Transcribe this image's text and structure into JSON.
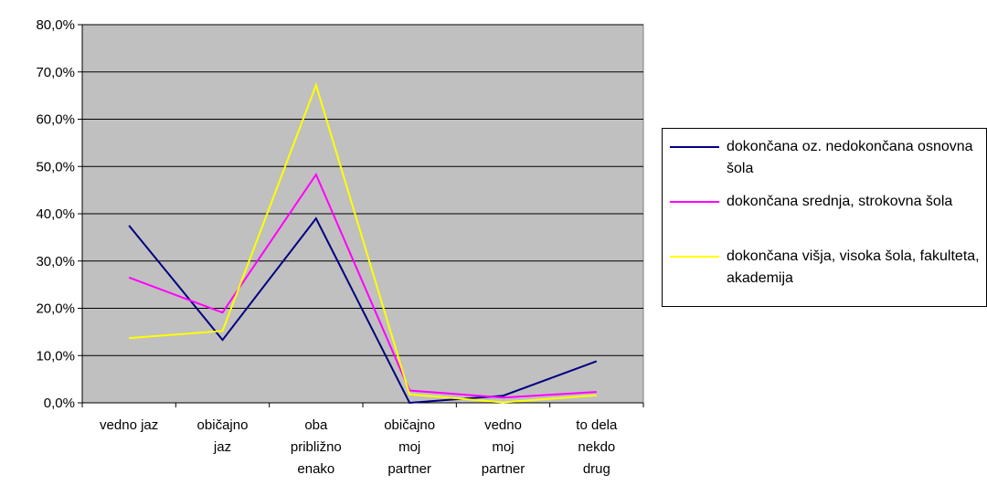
{
  "chart_data": {
    "type": "line",
    "categories": [
      [
        "vedno jaz"
      ],
      [
        "običajno",
        "jaz"
      ],
      [
        "oba",
        "približno",
        "enako"
      ],
      [
        "običajno",
        "moj",
        "partner"
      ],
      [
        "vedno",
        "moj",
        "partner"
      ],
      [
        "to dela",
        "nekdo",
        "drug"
      ]
    ],
    "y_ticks": [
      "0,0%",
      "10,0%",
      "20,0%",
      "30,0%",
      "40,0%",
      "50,0%",
      "60,0%",
      "70,0%",
      "80,0%"
    ],
    "ylim": [
      0,
      80
    ],
    "plot_background": "#c0c0c0",
    "grid": true,
    "legend_position": "right",
    "series": [
      {
        "name": "dokončana oz. nedokončana osnovna šola",
        "color": "#000080",
        "values": [
          37.5,
          13.3,
          39.0,
          0.0,
          1.5,
          8.8
        ]
      },
      {
        "name": "dokončana srednja, strokovna šola",
        "color": "#ff00ff",
        "values": [
          26.5,
          19.1,
          48.3,
          2.6,
          1.1,
          2.3
        ]
      },
      {
        "name": "dokončana višja, visoka šola, fakulteta, akademija",
        "color": "#ffff00",
        "values": [
          13.7,
          15.2,
          67.2,
          1.8,
          0.1,
          1.6
        ]
      }
    ]
  }
}
